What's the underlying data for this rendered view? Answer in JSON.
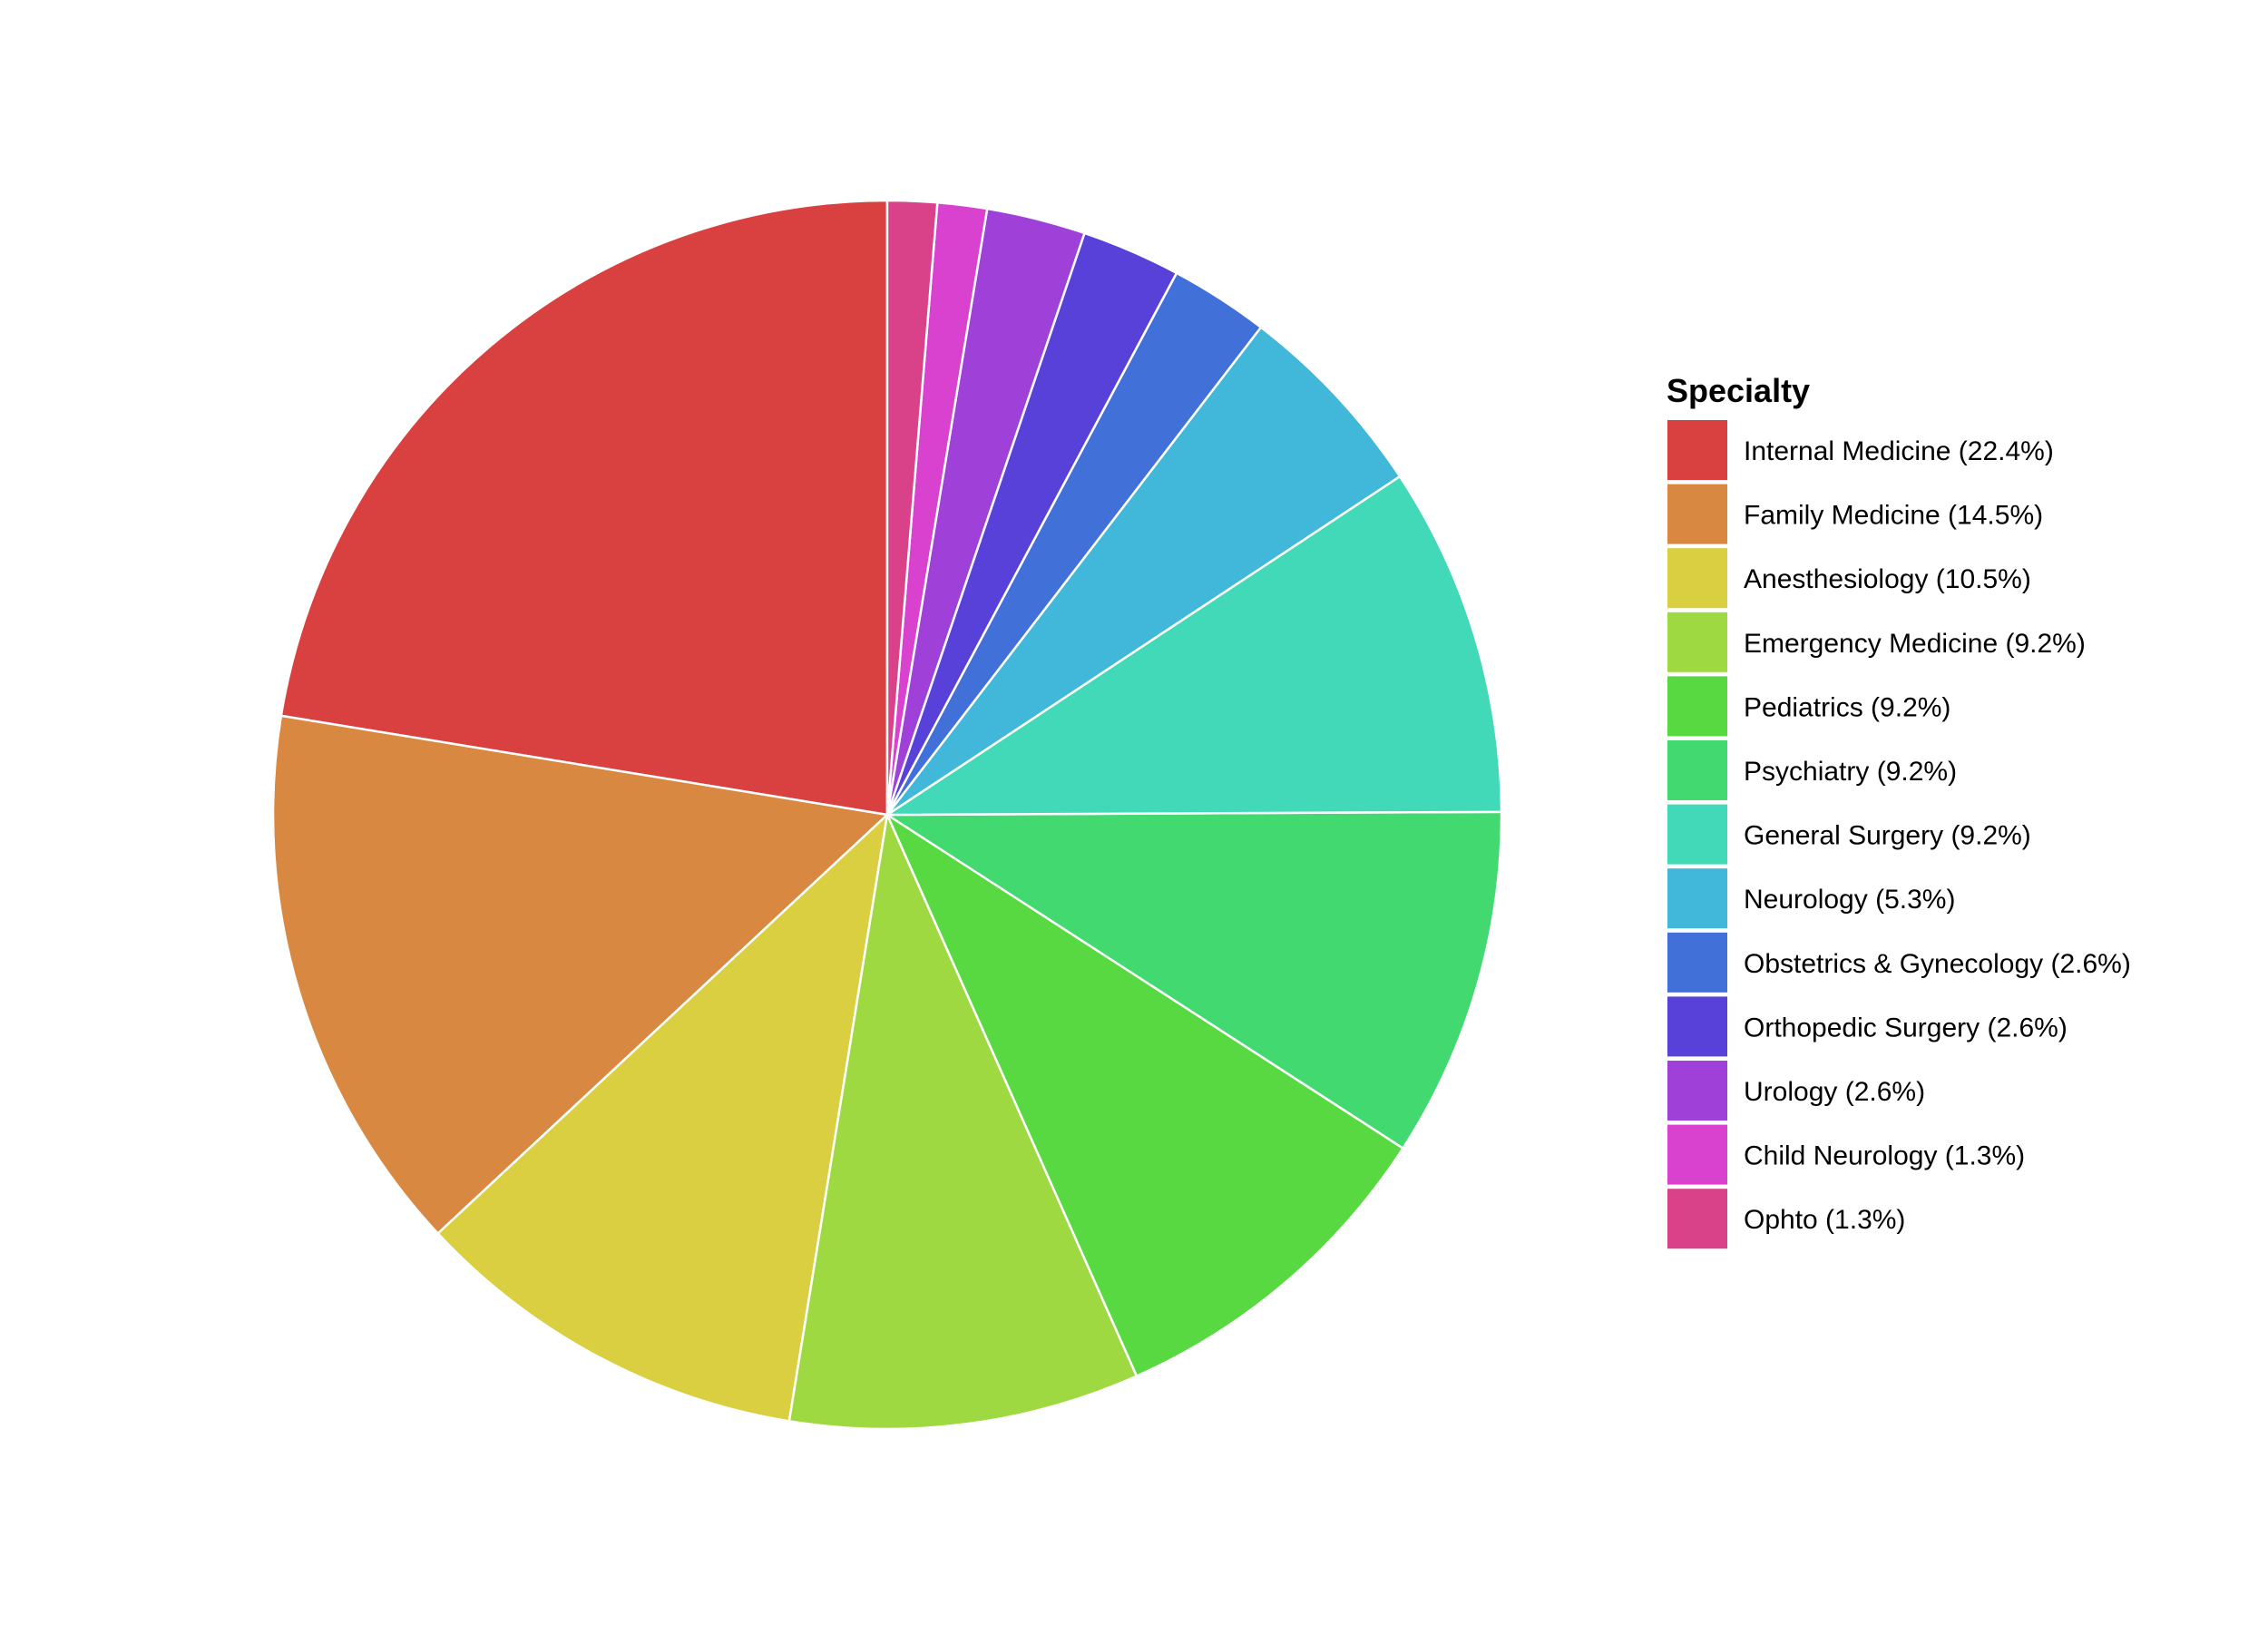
{
  "chart_data": {
    "type": "pie",
    "legend_title": "Specialty",
    "legend_position": "right",
    "start": "12 o'clock",
    "direction": "counter-clockwise",
    "slice_border": "#ffffff",
    "slices": [
      {
        "label": "Internal Medicine (22.4%)",
        "value": 22.4,
        "color": "#D94141"
      },
      {
        "label": "Family Medicine (14.5%)",
        "value": 14.5,
        "color": "#D98841"
      },
      {
        "label": "Anesthesiology (10.5%)",
        "value": 10.5,
        "color": "#D9CF41"
      },
      {
        "label": "Emergency Medicine (9.2%)",
        "value": 9.2,
        "color": "#9FD941"
      },
      {
        "label": "Pediatrics (9.2%)",
        "value": 9.2,
        "color": "#58D941"
      },
      {
        "label": "Psychiatry (9.2%)",
        "value": 9.2,
        "color": "#41D970"
      },
      {
        "label": "General Surgery (9.2%)",
        "value": 9.2,
        "color": "#41D9B7"
      },
      {
        "label": "Neurology (5.3%)",
        "value": 5.3,
        "color": "#41B7D9"
      },
      {
        "label": "Obstetrics & Gynecology (2.6%)",
        "value": 2.6,
        "color": "#4170D9"
      },
      {
        "label": "Orthopedic Surgery (2.6%)",
        "value": 2.6,
        "color": "#5841D9"
      },
      {
        "label": "Urology (2.6%)",
        "value": 2.6,
        "color": "#9F41D9"
      },
      {
        "label": "Child Neurology (1.3%)",
        "value": 1.3,
        "color": "#D941CF"
      },
      {
        "label": "Ophto (1.3%)",
        "value": 1.3,
        "color": "#D94188"
      }
    ]
  }
}
